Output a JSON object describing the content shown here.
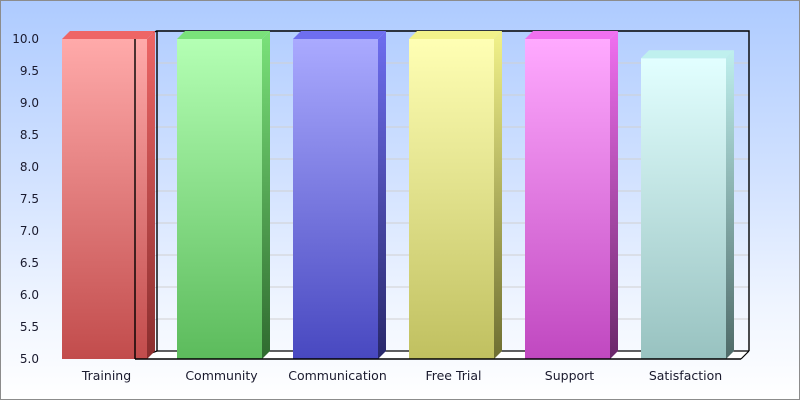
{
  "chart_data": {
    "type": "bar",
    "title": "",
    "xlabel": "",
    "ylabel": "",
    "ylim": [
      5.0,
      10.0
    ],
    "yticks": [
      "5.0",
      "5.5",
      "6.0",
      "6.5",
      "7.0",
      "7.5",
      "8.0",
      "8.5",
      "9.0",
      "9.5",
      "10.0"
    ],
    "grid": true,
    "legend": "none",
    "style": "3d",
    "categories": [
      "Training",
      "Community",
      "Communication",
      "Free Trial",
      "Support",
      "Satisfaction"
    ],
    "values": [
      10.0,
      10.0,
      10.0,
      10.0,
      10.0,
      9.7
    ],
    "colors": [
      {
        "top": "#ffaaaa",
        "bottom": "#c24c4c",
        "side": "#8a2e2e",
        "cap": "#ee6666"
      },
      {
        "top": "#b4ffb4",
        "bottom": "#5cbb5c",
        "side": "#2f6a2f",
        "cap": "#7ae27a"
      },
      {
        "top": "#aaaaff",
        "bottom": "#4848c0",
        "side": "#28286a",
        "cap": "#6e6ef0"
      },
      {
        "top": "#ffffb4",
        "bottom": "#c0c060",
        "side": "#6e6e32",
        "cap": "#f2f28a"
      },
      {
        "top": "#ffaaff",
        "bottom": "#c048c0",
        "side": "#6a286a",
        "cap": "#f070f0"
      },
      {
        "top": "#e2ffff",
        "bottom": "#98c2c0",
        "side": "#4e6a68",
        "cap": "#bff0ee"
      }
    ]
  }
}
